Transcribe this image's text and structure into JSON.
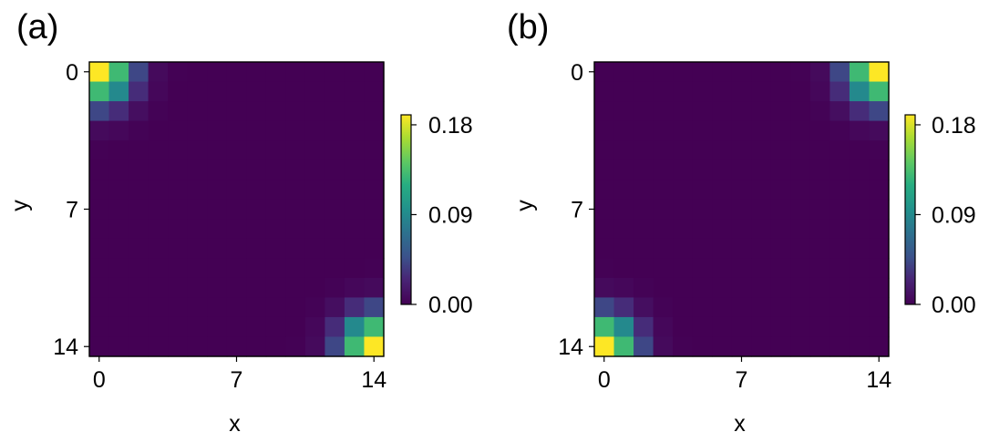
{
  "colors": {
    "viridis_low": "#440154",
    "viridis_mid": "#21918c",
    "viridis_high": "#fde725",
    "frame": "#000000"
  },
  "chart_data": [
    {
      "type": "heatmap",
      "panel_label": "(a)",
      "xlabel": "x",
      "ylabel": "y",
      "x_ticks": [
        "0",
        "7",
        "14"
      ],
      "y_ticks": [
        "0",
        "7",
        "14"
      ],
      "xlim": [
        0,
        14
      ],
      "ylim": [
        0,
        14
      ],
      "y_axis_inverted": true,
      "colormap": "viridis",
      "colorbar": {
        "min": 0.0,
        "max": 0.19,
        "ticks": [
          "0.18",
          "0.09",
          "0.00"
        ]
      },
      "hotspots": [
        {
          "x": 0,
          "y": 0,
          "value": 0.19
        },
        {
          "x": 14,
          "y": 14,
          "value": 0.19
        }
      ],
      "background_value": 0.0
    },
    {
      "type": "heatmap",
      "panel_label": "(b)",
      "xlabel": "x",
      "ylabel": "y",
      "x_ticks": [
        "0",
        "7",
        "14"
      ],
      "y_ticks": [
        "0",
        "7",
        "14"
      ],
      "xlim": [
        0,
        14
      ],
      "ylim": [
        0,
        14
      ],
      "y_axis_inverted": true,
      "colormap": "viridis",
      "colorbar": {
        "min": 0.0,
        "max": 0.19,
        "ticks": [
          "0.18",
          "0.09",
          "0.00"
        ]
      },
      "hotspots": [
        {
          "x": 14,
          "y": 0,
          "value": 0.19
        },
        {
          "x": 0,
          "y": 14,
          "value": 0.19
        }
      ],
      "background_value": 0.0
    }
  ]
}
